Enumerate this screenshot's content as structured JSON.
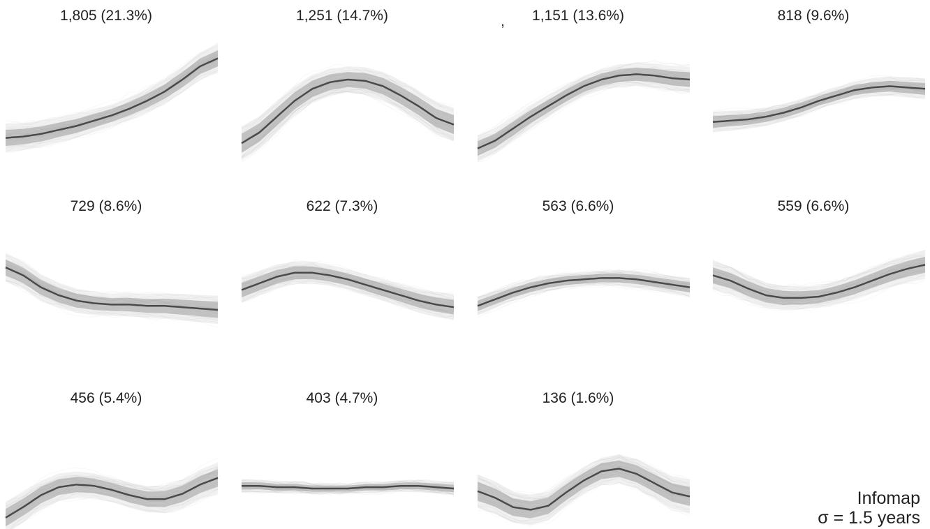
{
  "chart_data": {
    "type": "line",
    "method": "Infomap",
    "sigma_label": "σ = 1.5 years",
    "band_color": "#9a9a9a",
    "line_color": "#4a4a4a",
    "panels": [
      {
        "title": "1,805 (21.3%)",
        "n": 1805,
        "mean": [
          0.16,
          0.17,
          0.19,
          0.22,
          0.25,
          0.29,
          0.33,
          0.38,
          0.44,
          0.51,
          0.6,
          0.7,
          0.76
        ],
        "spread": 0.11
      },
      {
        "title": "1,251 (14.7%)",
        "n": 1251,
        "mean": [
          0.12,
          0.2,
          0.32,
          0.44,
          0.53,
          0.58,
          0.6,
          0.59,
          0.55,
          0.48,
          0.4,
          0.31,
          0.26
        ],
        "spread": 0.13
      },
      {
        "title": "1,151 (13.6%)",
        "n": 1151,
        "mean": [
          0.08,
          0.14,
          0.23,
          0.32,
          0.4,
          0.48,
          0.55,
          0.6,
          0.63,
          0.64,
          0.63,
          0.61,
          0.6
        ],
        "spread": 0.1
      },
      {
        "title": "818 (9.6%)",
        "n": 818,
        "mean": [
          0.28,
          0.29,
          0.3,
          0.32,
          0.35,
          0.39,
          0.44,
          0.48,
          0.52,
          0.54,
          0.55,
          0.54,
          0.53
        ],
        "spread": 0.08
      },
      {
        "title": "729 (8.6%)",
        "n": 729,
        "mean": [
          0.62,
          0.56,
          0.47,
          0.41,
          0.37,
          0.35,
          0.34,
          0.34,
          0.33,
          0.33,
          0.32,
          0.31,
          0.3
        ],
        "spread": 0.11
      },
      {
        "title": "622 (7.3%)",
        "n": 622,
        "mean": [
          0.45,
          0.5,
          0.55,
          0.58,
          0.58,
          0.56,
          0.53,
          0.49,
          0.45,
          0.41,
          0.37,
          0.34,
          0.32
        ],
        "spread": 0.1
      },
      {
        "title": "563 (6.6%)",
        "n": 563,
        "mean": [
          0.33,
          0.38,
          0.43,
          0.47,
          0.5,
          0.52,
          0.53,
          0.54,
          0.54,
          0.53,
          0.51,
          0.49,
          0.47
        ],
        "spread": 0.07
      },
      {
        "title": "559 (6.6%)",
        "n": 559,
        "mean": [
          0.56,
          0.52,
          0.46,
          0.41,
          0.39,
          0.39,
          0.4,
          0.43,
          0.47,
          0.52,
          0.57,
          0.61,
          0.64
        ],
        "spread": 0.11
      },
      {
        "title": "456 (5.4%)",
        "n": 456,
        "mean": [
          0.18,
          0.26,
          0.35,
          0.41,
          0.43,
          0.42,
          0.39,
          0.35,
          0.32,
          0.32,
          0.36,
          0.43,
          0.48
        ],
        "spread": 0.12
      },
      {
        "title": "403 (4.7%)",
        "n": 403,
        "mean": [
          0.42,
          0.42,
          0.41,
          0.41,
          0.4,
          0.4,
          0.4,
          0.41,
          0.41,
          0.42,
          0.42,
          0.41,
          0.4
        ],
        "spread": 0.05
      },
      {
        "title": "136 (1.6%)",
        "n": 136,
        "mean": [
          0.38,
          0.33,
          0.26,
          0.24,
          0.27,
          0.37,
          0.46,
          0.53,
          0.55,
          0.51,
          0.44,
          0.37,
          0.34
        ],
        "spread": 0.13
      }
    ]
  }
}
